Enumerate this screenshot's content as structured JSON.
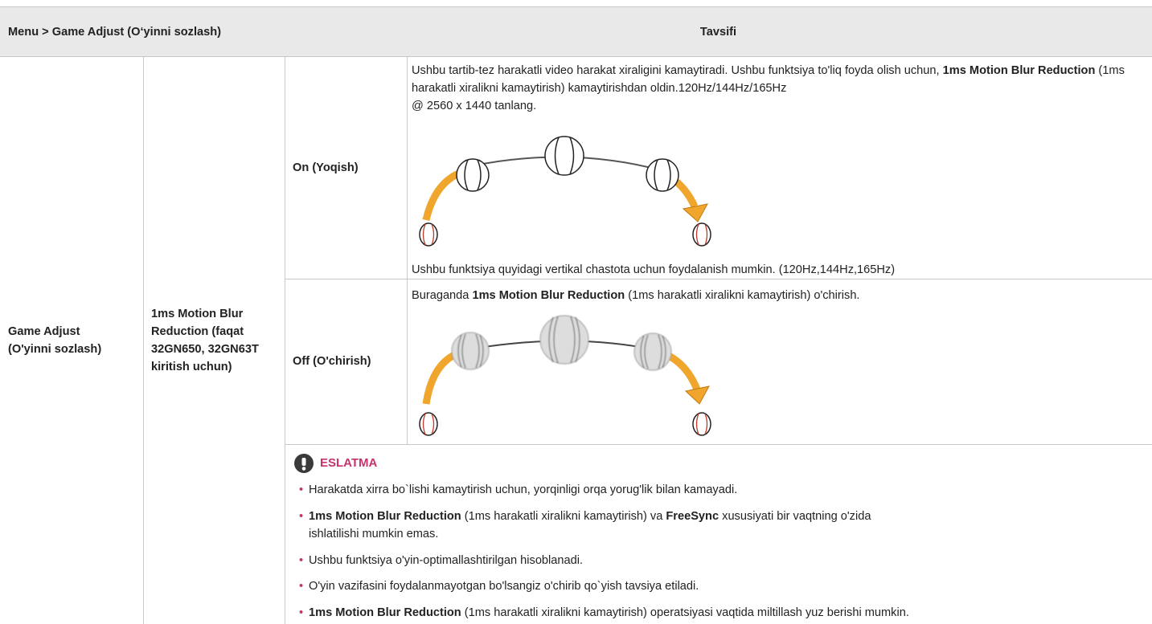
{
  "header": {
    "menu": "Menu > Game Adjust (O‘yinni sozlash)",
    "description": "Tavsifi"
  },
  "body": {
    "menu_item": [
      "Game Adjust",
      "(O'yinni sozlash)"
    ],
    "function": "1ms Motion Blur Reduction (faqat 32GN650, 32GN63T kiritish uchun)",
    "options": [
      {
        "label": "On (Yoqish)",
        "description": [
          "Ushbu tartib-tez harakatli video harakat xiraligini kamaytiradi. Ushbu funktsiya to'liq foyda olish uchun, ",
          "1ms Motion Blur Reduction",
          " (1ms harakatli xiralikni kamaytirish) kamaytirishdan oldin.120Hz/144Hz/165Hz",
          "@ 2560 x 1440 tanlang."
        ],
        "footnote": "Ushbu funktsiya quyidagi vertikal chastota uchun foydalanish mumkin. (120Hz,144Hz,165Hz)"
      },
      {
        "label": "Off (O'chirish)",
        "description": [
          "Buraganda ",
          "1ms Motion Blur Reduction",
          " (1ms harakatli xiralikni kamaytirish) o'chirish."
        ]
      }
    ],
    "note": {
      "title": "ESLATMA",
      "items": [
        [
          "Harakatda xirra bo`lishi kamaytirish uchun, yorqinligi orqa yorug'lik bilan kamayadi."
        ],
        [
          "1ms Motion Blur Reduction",
          " (1ms harakatli xiralikni kamaytirish) va ",
          "FreeSync",
          " xususiyati bir vaqtning o'zida ishlatilishi mumkin emas."
        ],
        [
          "Ushbu funktsiya o'yin-optimallashtirilgan hisoblanadi."
        ],
        [
          "O'yin vazifasini foydalanmayotgan bo'lsangiz o'chirib qo`yish tavsiya etiladi."
        ],
        [
          "1ms Motion Blur Reduction",
          " (1ms harakatli xiralikni kamaytirish) operatsiyasi vaqtida miltillash yuz berishi mumkin."
        ]
      ]
    }
  }
}
